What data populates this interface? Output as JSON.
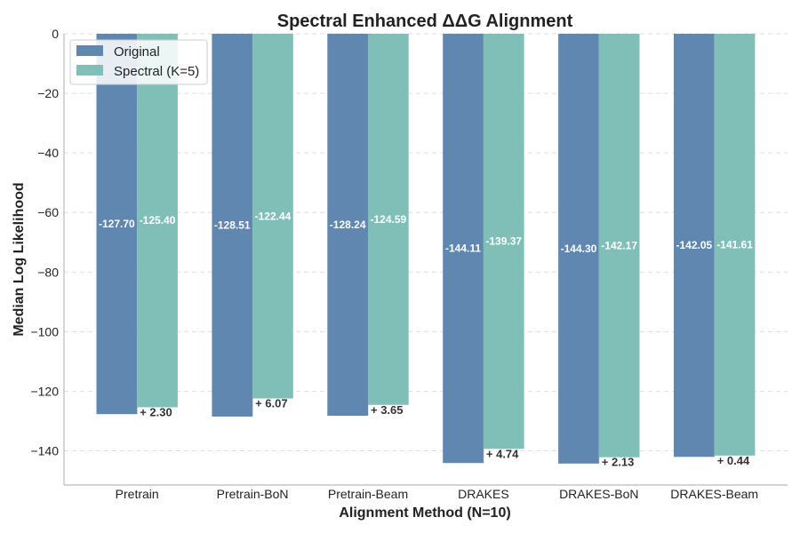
{
  "chart_data": {
    "type": "bar",
    "title": "Spectral Enhanced ΔΔG Alignment",
    "xlabel": "Alignment Method (N=10)",
    "ylabel": "Median Log Likelihood",
    "ylim": [
      -151.5,
      0
    ],
    "yticks": [
      0,
      -20,
      -40,
      -60,
      -80,
      -100,
      -120,
      -140
    ],
    "ytick_labels": [
      "0",
      "−20",
      "−40",
      "−60",
      "−80",
      "−100",
      "−120",
      "−140"
    ],
    "grid": true,
    "legend_position": "top-left",
    "categories": [
      "Pretrain",
      "Pretrain-BoN",
      "Pretrain-Beam",
      "DRAKES",
      "DRAKES-BoN",
      "DRAKES-Beam"
    ],
    "series": [
      {
        "name": "Original",
        "color": "#5f87b0",
        "values": [
          -127.7,
          -128.51,
          -128.24,
          -144.11,
          -144.3,
          -142.05
        ],
        "labels": [
          "-127.70",
          "-128.51",
          "-128.24",
          "-144.11",
          "-144.30",
          "-142.05"
        ]
      },
      {
        "name": "Spectral (K=5)",
        "color": "#80bfb7",
        "values": [
          -125.4,
          -122.44,
          -124.59,
          -139.37,
          -142.17,
          -141.61
        ],
        "labels": [
          "-125.40",
          "-122.44",
          "-124.59",
          "-139.37",
          "-142.17",
          "-141.61"
        ]
      }
    ],
    "improvements": [
      "+ 2.30",
      "+ 6.07",
      "+ 3.65",
      "+ 4.74",
      "+ 2.13",
      "+ 0.44"
    ]
  }
}
